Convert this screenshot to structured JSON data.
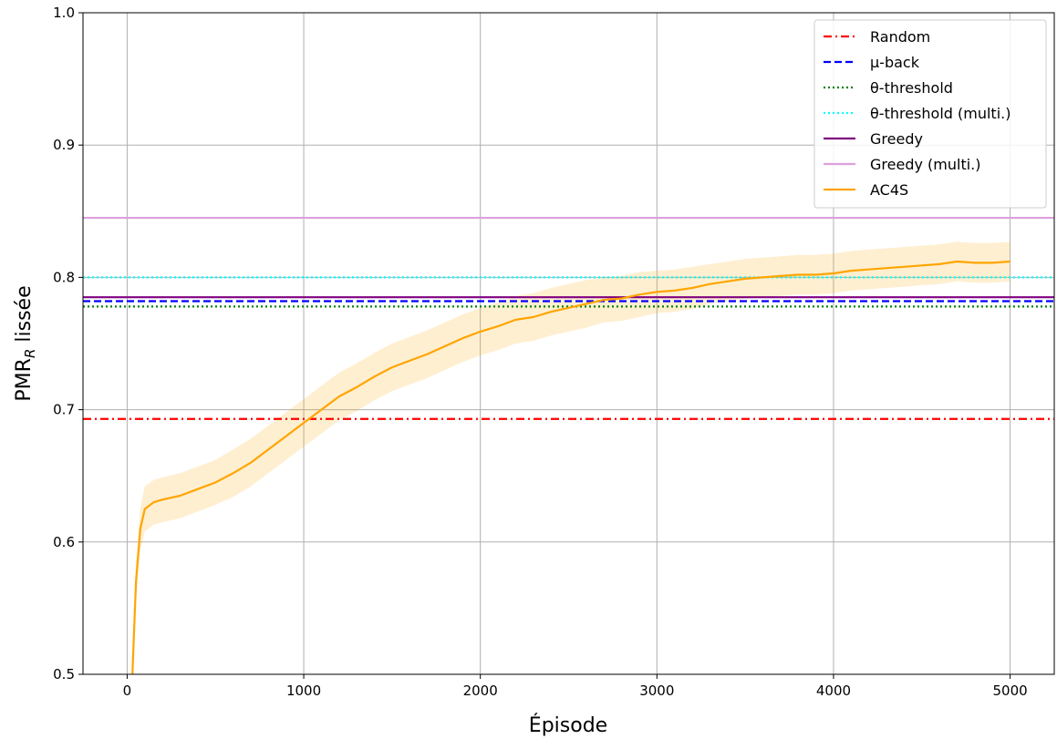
{
  "chart_data": {
    "type": "line",
    "xlabel": "Épisode",
    "ylabel_main": "PMR",
    "ylabel_sub": "R",
    "ylabel_rest": " lissée",
    "xlim": [
      -250,
      5250
    ],
    "ylim": [
      0.5,
      1.0
    ],
    "xticks": [
      0,
      1000,
      2000,
      3000,
      4000,
      5000
    ],
    "xtick_labels": [
      "0",
      "1000",
      "2000",
      "3000",
      "4000",
      "5000"
    ],
    "yticks": [
      0.5,
      0.6,
      0.7,
      0.8,
      0.9,
      1.0
    ],
    "ytick_labels": [
      "0.5",
      "0.6",
      "0.7",
      "0.8",
      "0.9",
      "1.0"
    ],
    "grid": true,
    "legend_position": "top-right",
    "baselines": [
      {
        "name": "Random",
        "value": 0.693,
        "color": "#ff0000",
        "dash": "dashdot"
      },
      {
        "name": "μ-back",
        "value": 0.782,
        "color": "#0000ff",
        "dash": "dashed"
      },
      {
        "name": "θ-threshold",
        "value": 0.778,
        "color": "#008000",
        "dash": "dotted"
      },
      {
        "name": "θ-threshold (multi.)",
        "value": 0.8,
        "color": "#00ffff",
        "dash": "dotted"
      },
      {
        "name": "Greedy",
        "value": 0.785,
        "color": "#800080",
        "dash": "solid"
      },
      {
        "name": "Greedy (multi.)",
        "value": 0.845,
        "color": "#dda0dd",
        "dash": "solid"
      }
    ],
    "series": [
      {
        "name": "AC4S",
        "color": "#ffa500",
        "x": [
          30,
          50,
          75,
          100,
          150,
          200,
          300,
          400,
          500,
          600,
          700,
          800,
          900,
          1000,
          1100,
          1200,
          1300,
          1400,
          1500,
          1600,
          1700,
          1800,
          1900,
          2000,
          2100,
          2200,
          2300,
          2400,
          2500,
          2600,
          2700,
          2800,
          2900,
          3000,
          3100,
          3200,
          3300,
          3400,
          3500,
          3600,
          3700,
          3800,
          3900,
          4000,
          4100,
          4200,
          4300,
          4400,
          4500,
          4600,
          4700,
          4800,
          4900,
          5000
        ],
        "y": [
          0.5,
          0.57,
          0.61,
          0.625,
          0.63,
          0.632,
          0.635,
          0.64,
          0.645,
          0.652,
          0.66,
          0.67,
          0.68,
          0.69,
          0.7,
          0.71,
          0.717,
          0.725,
          0.732,
          0.737,
          0.742,
          0.748,
          0.754,
          0.759,
          0.763,
          0.768,
          0.77,
          0.774,
          0.777,
          0.78,
          0.783,
          0.784,
          0.787,
          0.789,
          0.79,
          0.792,
          0.795,
          0.797,
          0.799,
          0.8,
          0.801,
          0.802,
          0.802,
          0.803,
          0.805,
          0.806,
          0.807,
          0.808,
          0.809,
          0.81,
          0.812,
          0.811,
          0.811,
          0.812
        ],
        "band": [
          0.0,
          0.015,
          0.016,
          0.017,
          0.017,
          0.017,
          0.017,
          0.017,
          0.017,
          0.018,
          0.018,
          0.018,
          0.018,
          0.018,
          0.018,
          0.018,
          0.018,
          0.018,
          0.018,
          0.018,
          0.018,
          0.018,
          0.018,
          0.018,
          0.018,
          0.018,
          0.018,
          0.018,
          0.018,
          0.018,
          0.017,
          0.017,
          0.017,
          0.016,
          0.016,
          0.016,
          0.015,
          0.015,
          0.015,
          0.015,
          0.015,
          0.015,
          0.015,
          0.015,
          0.015,
          0.015,
          0.015,
          0.015,
          0.015,
          0.015,
          0.015,
          0.015,
          0.015,
          0.015
        ]
      }
    ]
  }
}
